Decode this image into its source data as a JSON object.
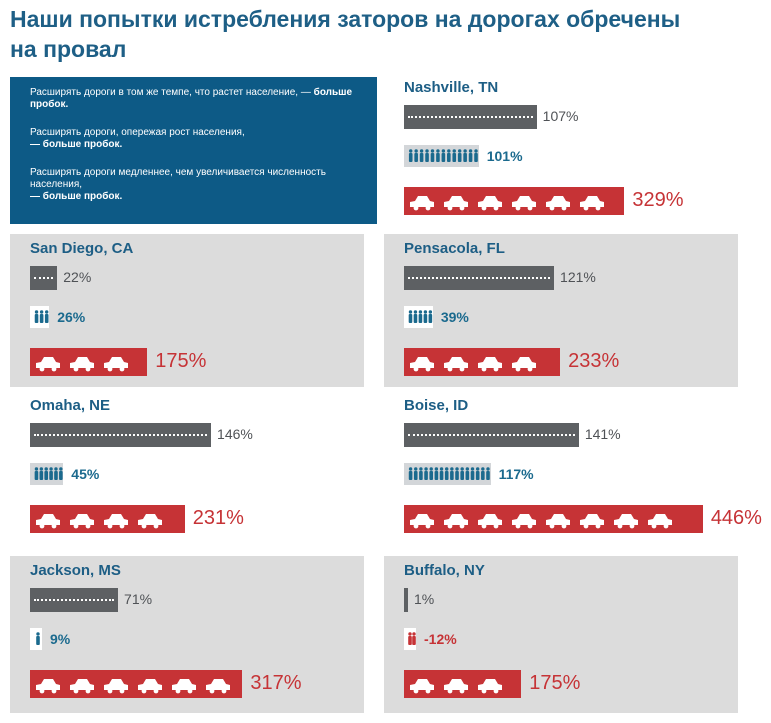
{
  "title": "Наши попытки истребления заторов на дорогах обречены на провал",
  "legend": {
    "p1": "Расширять дороги в том же темпе, что растет население, —",
    "p1_bold": "больше пробок.",
    "p2": "Расширять дороги, опережая рост населения,",
    "p2_bold": "— больше пробок.",
    "p3": "Расширять дороги медленнее, чем увеличивается численность населения,",
    "p3_bold": "— больше пробок."
  },
  "colors": {
    "title": "#1e5f86",
    "legend_bg": "#0d5a86",
    "road": "#5d6063",
    "population": "#1b6a8e",
    "congestion": "#c63336",
    "panel_gray": "#dcdcdc"
  },
  "icons": {
    "road": "road-icon",
    "person": "person-icon",
    "car": "car-icon"
  },
  "chart_data": {
    "type": "bar",
    "metrics": [
      "road",
      "population",
      "congestion"
    ],
    "cities": [
      {
        "city": "Nashville, TN",
        "road": 107,
        "population": 101,
        "congestion": 329,
        "road_label": "107%",
        "pop_label": "101%",
        "cong_label": "329%"
      },
      {
        "city": "San Diego, CA",
        "road": 22,
        "population": 26,
        "congestion": 175,
        "road_label": "22%",
        "pop_label": "26%",
        "cong_label": "175%"
      },
      {
        "city": "Pensacola, FL",
        "road": 121,
        "population": 39,
        "congestion": 233,
        "road_label": "121%",
        "pop_label": "39%",
        "cong_label": "233%"
      },
      {
        "city": "Omaha, NE",
        "road": 146,
        "population": 45,
        "congestion": 231,
        "road_label": "146%",
        "pop_label": "45%",
        "cong_label": "231%"
      },
      {
        "city": "Boise, ID",
        "road": 141,
        "population": 117,
        "congestion": 446,
        "road_label": "141%",
        "pop_label": "117%",
        "cong_label": "446%"
      },
      {
        "city": "Jackson, MS",
        "road": 71,
        "population": 9,
        "congestion": 317,
        "road_label": "71%",
        "pop_label": "9%",
        "cong_label": "317%"
      },
      {
        "city": "Buffalo, NY",
        "road": 1,
        "population": -12,
        "congestion": 175,
        "road_label": "1%",
        "pop_label": "-12%",
        "cong_label": "175%"
      }
    ]
  }
}
